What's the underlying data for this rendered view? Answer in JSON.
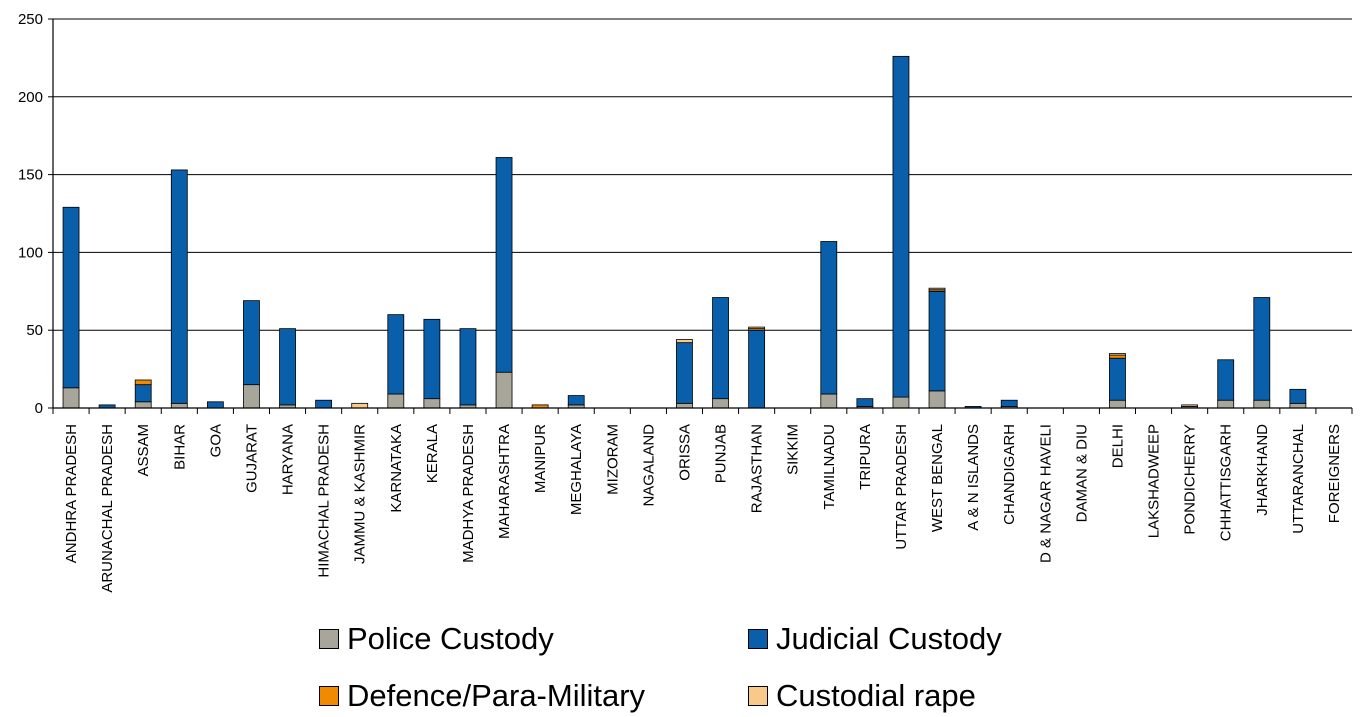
{
  "chart_data": {
    "type": "bar",
    "stacked": true,
    "title": "",
    "xlabel": "",
    "ylabel": "",
    "ylim": [
      0,
      250
    ],
    "yticks": [
      0,
      50,
      100,
      150,
      200,
      250
    ],
    "grid": true,
    "legend_position": "bottom",
    "categories": [
      "ANDHRA PRADESH",
      "ARUNACHAL PRADESH",
      "ASSAM",
      "BIHAR",
      "GOA",
      "GUJARAT",
      "HARYANA",
      "HIMACHAL PRADESH",
      "JAMMU & KASHMIR",
      "KARNATAKA",
      "KERALA",
      "MADHYA PRADESH",
      "MAHARASHTRA",
      "MANIPUR",
      "MEGHALAYA",
      "MIZORAM",
      "NAGALAND",
      "ORISSA",
      "PUNJAB",
      "RAJASTHAN",
      "SIKKIM",
      "TAMILNADU",
      "TRIPURA",
      "UTTAR PRADESH",
      "WEST BENGAL",
      "A & N ISLANDS",
      "CHANDIGARH",
      "D & NAGAR HAVELI",
      "DAMAN & DIU",
      "DELHI",
      "LAKSHADWEEP",
      "PONDICHERRY",
      "CHHATTISGARH",
      "JHARKHAND",
      "UTTARANCHAL",
      "FOREIGNERS"
    ],
    "series": [
      {
        "name": "Police Custody",
        "color": "#a8a59a",
        "values": [
          13,
          0,
          4,
          3,
          0,
          15,
          2,
          0,
          0,
          9,
          6,
          2,
          23,
          0,
          2,
          0,
          0,
          3,
          6,
          0,
          0,
          9,
          1,
          7,
          11,
          0,
          1,
          0,
          0,
          5,
          0,
          1,
          5,
          5,
          3,
          0
        ]
      },
      {
        "name": "Judicial Custody",
        "color": "#0a5fab",
        "values": [
          116,
          2,
          11,
          150,
          4,
          54,
          49,
          5,
          0,
          51,
          51,
          49,
          138,
          0,
          6,
          0,
          0,
          39,
          65,
          50,
          0,
          98,
          5,
          219,
          64,
          1,
          4,
          0,
          0,
          27,
          0,
          0,
          26,
          66,
          9,
          0
        ]
      },
      {
        "name": "Defence/Para-Military",
        "color": "#f08a00",
        "values": [
          0,
          0,
          3,
          0,
          0,
          0,
          0,
          0,
          0,
          0,
          0,
          0,
          0,
          2,
          0,
          0,
          0,
          0,
          0,
          1,
          0,
          0,
          0,
          0,
          1,
          0,
          0,
          0,
          0,
          2,
          0,
          0,
          0,
          0,
          0,
          0
        ]
      },
      {
        "name": "Custodial rape",
        "color": "#f8c98a",
        "values": [
          0,
          0,
          0,
          0,
          0,
          0,
          0,
          0,
          3,
          0,
          0,
          0,
          0,
          0,
          0,
          0,
          0,
          2,
          0,
          1,
          0,
          0,
          0,
          0,
          1,
          0,
          0,
          0,
          0,
          1,
          0,
          1,
          0,
          0,
          0,
          0
        ]
      }
    ]
  }
}
